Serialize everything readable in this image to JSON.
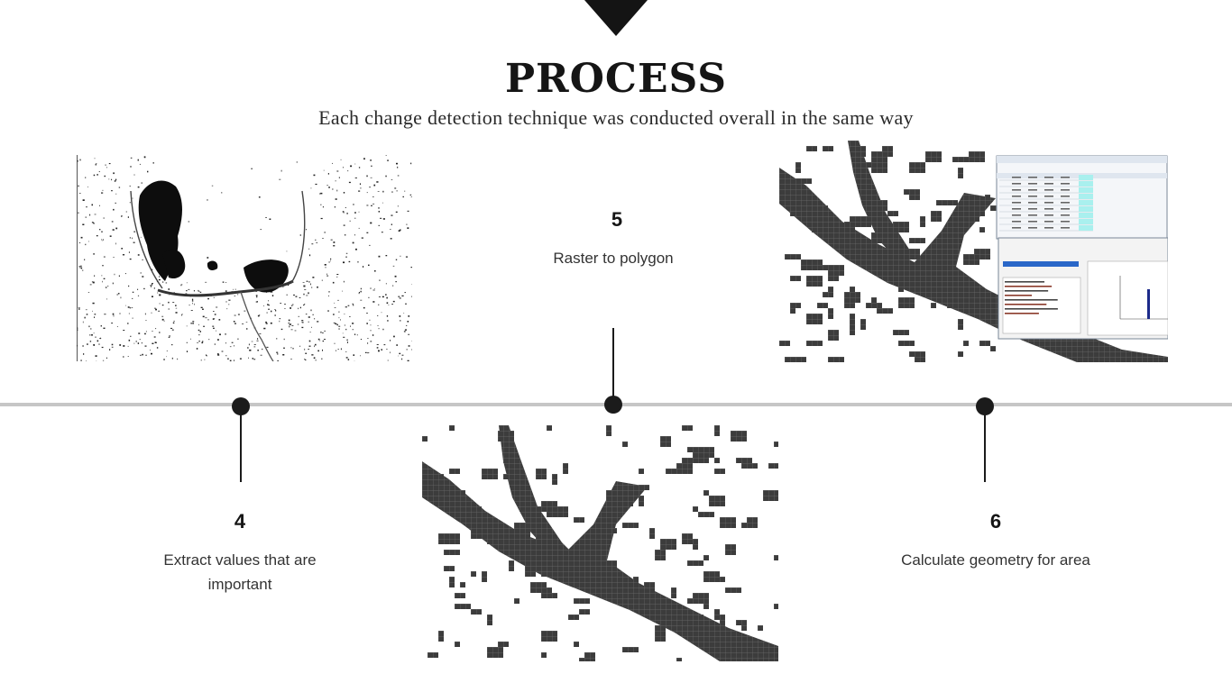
{
  "title": "PROCESS",
  "subtitle": "Each change detection technique was conducted overall in the same way",
  "steps": [
    {
      "number": "4",
      "description": "Extract values that are important"
    },
    {
      "number": "5",
      "description": "Raster to polygon"
    },
    {
      "number": "6",
      "description": "Calculate geometry for area"
    }
  ],
  "colors": {
    "dark": "#1b1b1b",
    "timeline": "#c6c6c6",
    "polygon_fill": "#3c3c3c"
  },
  "images": [
    {
      "name": "binary-change-raster-image"
    },
    {
      "name": "polygon-grid-image"
    },
    {
      "name": "polygon-with-attribute-table-image"
    }
  ]
}
